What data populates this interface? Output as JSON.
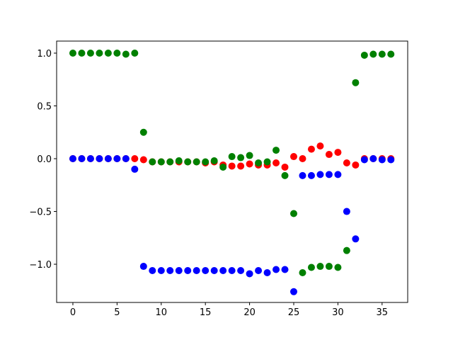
{
  "chart_data": {
    "type": "scatter",
    "x": [
      0,
      1,
      2,
      3,
      4,
      5,
      6,
      7,
      8,
      9,
      10,
      11,
      12,
      13,
      14,
      15,
      16,
      17,
      18,
      19,
      20,
      21,
      22,
      23,
      24,
      25,
      26,
      27,
      28,
      29,
      30,
      31,
      32,
      33,
      34,
      35,
      36
    ],
    "series": [
      {
        "color": "#ff0000",
        "values": [
          0,
          0,
          0,
          0,
          0,
          0,
          0,
          0,
          -0.01,
          -0.03,
          -0.03,
          -0.03,
          -0.03,
          -0.03,
          -0.03,
          -0.04,
          -0.03,
          -0.06,
          -0.07,
          -0.07,
          -0.05,
          -0.06,
          -0.06,
          -0.04,
          -0.08,
          0.02,
          0.0,
          0.09,
          0.12,
          0.04,
          0.06,
          -0.04,
          -0.06,
          0,
          0,
          0,
          0
        ]
      },
      {
        "color": "#0000ff",
        "values": [
          0,
          0,
          0,
          0,
          0,
          0,
          0,
          -0.1,
          -1.02,
          -1.06,
          -1.06,
          -1.06,
          -1.06,
          -1.06,
          -1.06,
          -1.06,
          -1.06,
          -1.06,
          -1.06,
          -1.06,
          -1.09,
          -1.06,
          -1.08,
          -1.05,
          -1.05,
          -1.26,
          -0.16,
          -0.16,
          -0.15,
          -0.15,
          -0.15,
          -0.5,
          -0.76,
          -0.01,
          0,
          -0.01,
          -0.01
        ]
      },
      {
        "color": "#008000",
        "values": [
          1.0,
          1.0,
          1.0,
          1.0,
          1.0,
          1.0,
          0.99,
          1.0,
          0.25,
          -0.03,
          -0.03,
          -0.03,
          -0.02,
          -0.03,
          -0.03,
          -0.03,
          -0.02,
          -0.08,
          0.02,
          0.01,
          0.03,
          -0.04,
          -0.03,
          0.08,
          -0.16,
          -0.52,
          -1.08,
          -1.03,
          -1.02,
          -1.02,
          -1.03,
          -0.87,
          0.72,
          0.98,
          0.99,
          0.99,
          0.99
        ]
      }
    ],
    "xlim": [
      -1.84,
      37.9
    ],
    "xticks": [
      0,
      5,
      10,
      15,
      20,
      25,
      30,
      35
    ],
    "ylim": [
      -1.362,
      1.114
    ],
    "yticks": [
      {
        "value": -1,
        "label": "−1.0"
      },
      {
        "value": -0.5,
        "label": "−0.5"
      },
      {
        "value": 0,
        "label": "0.0"
      },
      0.5,
      {
        "value": 1,
        "label": "1.0"
      }
    ],
    "grid": false
  }
}
